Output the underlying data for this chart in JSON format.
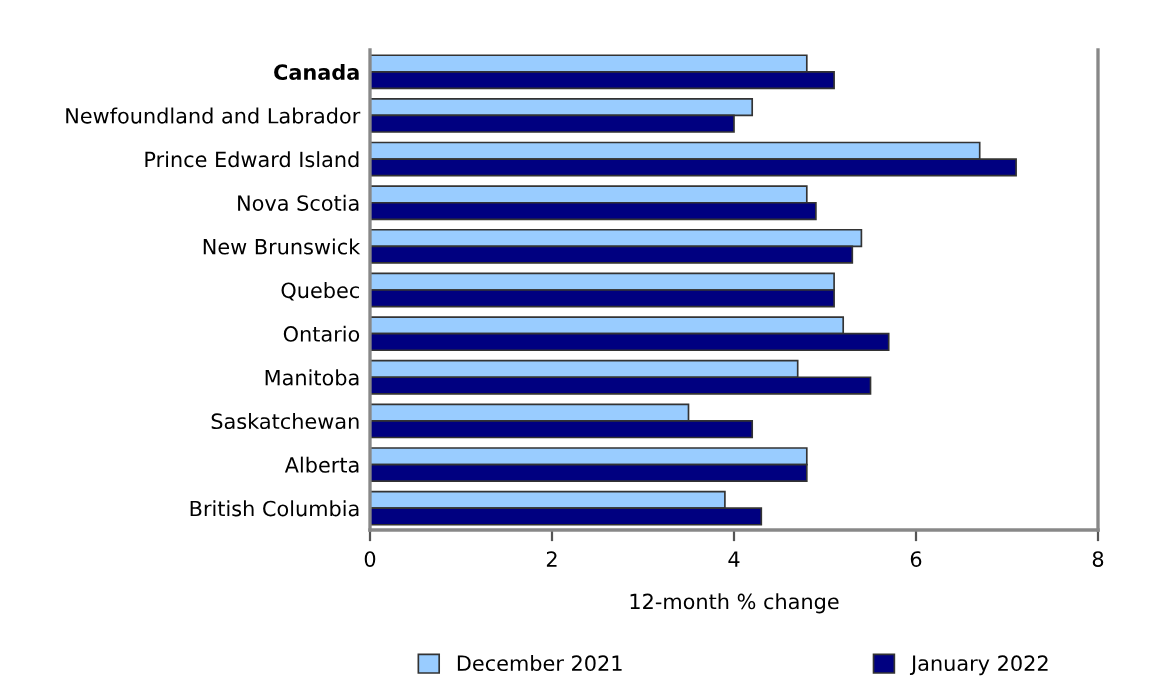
{
  "chart_data": {
    "type": "bar",
    "orientation": "horizontal",
    "xlabel": "12-month % change",
    "categories": [
      "Canada",
      "Newfoundland and Labrador",
      "Prince Edward Island",
      "Nova Scotia",
      "New Brunswick",
      "Quebec",
      "Ontario",
      "Manitoba",
      "Saskatchewan",
      "Alberta",
      "British Columbia"
    ],
    "series": [
      {
        "name": "December 2021",
        "color": "#99ccff",
        "values": [
          4.8,
          4.2,
          6.7,
          4.8,
          5.4,
          5.1,
          5.2,
          4.7,
          3.5,
          4.8,
          3.9
        ]
      },
      {
        "name": "January 2022",
        "color": "#000080",
        "values": [
          5.1,
          4.0,
          7.1,
          4.9,
          5.3,
          5.1,
          5.7,
          5.5,
          4.2,
          4.8,
          4.3
        ]
      }
    ],
    "xlim": [
      0,
      8
    ],
    "xticks": [
      0,
      2,
      4,
      6,
      8
    ],
    "grid": false,
    "legend": "bottom"
  }
}
